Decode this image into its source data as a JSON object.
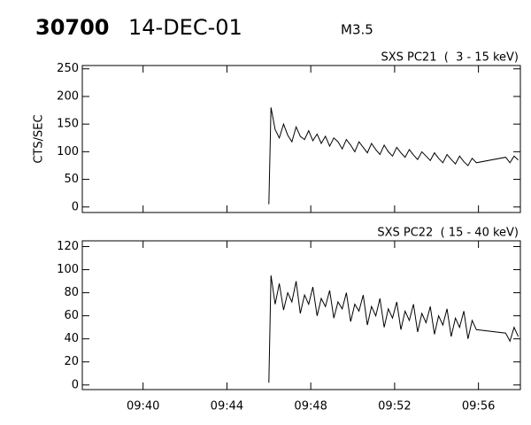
{
  "header": {
    "id": "30700",
    "date": "14-DEC-01",
    "class": "M3.5"
  },
  "chart_data": [
    {
      "type": "line",
      "title": "SXS PC21  (  3 - 15 keV)",
      "ylabel": "CTS/SEC",
      "xlim": [
        577.1,
        598
      ],
      "xticks": [
        580,
        584,
        588,
        592,
        596
      ],
      "ylim": [
        -10,
        256
      ],
      "yticks": [
        0,
        50,
        100,
        150,
        200,
        250
      ],
      "x": [
        586.0,
        586.1,
        586.3,
        586.5,
        586.7,
        586.9,
        587.1,
        587.3,
        587.5,
        587.7,
        587.9,
        588.1,
        588.3,
        588.5,
        588.7,
        588.9,
        589.1,
        589.3,
        589.5,
        589.7,
        589.9,
        590.1,
        590.3,
        590.5,
        590.7,
        590.9,
        591.1,
        591.3,
        591.5,
        591.7,
        591.9,
        592.1,
        592.3,
        592.5,
        592.7,
        592.9,
        593.1,
        593.3,
        593.5,
        593.7,
        593.9,
        594.1,
        594.3,
        594.5,
        594.7,
        594.9,
        595.1,
        595.3,
        595.5,
        595.7,
        595.9,
        597.3,
        597.5,
        597.7,
        597.9
      ],
      "series": [
        {
          "color": "#000000",
          "values": [
            5,
            180,
            140,
            125,
            150,
            130,
            118,
            145,
            128,
            122,
            138,
            120,
            132,
            115,
            128,
            110,
            125,
            118,
            105,
            122,
            112,
            100,
            118,
            108,
            98,
            115,
            104,
            95,
            112,
            100,
            92,
            108,
            98,
            90,
            104,
            94,
            86,
            100,
            92,
            84,
            98,
            88,
            80,
            95,
            86,
            78,
            92,
            82,
            75,
            88,
            80,
            90,
            80,
            92,
            85
          ]
        }
      ]
    },
    {
      "type": "line",
      "title": "SXS PC22  ( 15 - 40 keV)",
      "xlim": [
        577.1,
        598
      ],
      "xticks": [
        {
          "value": 580,
          "label": "09:40"
        },
        {
          "value": 584,
          "label": "09:44"
        },
        {
          "value": 588,
          "label": "09:48"
        },
        {
          "value": 592,
          "label": "09:52"
        },
        {
          "value": 596,
          "label": "09:56"
        }
      ],
      "ylim": [
        -4,
        125
      ],
      "yticks": [
        0,
        20,
        40,
        60,
        80,
        100,
        120
      ],
      "x": [
        586.0,
        586.1,
        586.3,
        586.5,
        586.7,
        586.9,
        587.1,
        587.3,
        587.5,
        587.7,
        587.9,
        588.1,
        588.3,
        588.5,
        588.7,
        588.9,
        589.1,
        589.3,
        589.5,
        589.7,
        589.9,
        590.1,
        590.3,
        590.5,
        590.7,
        590.9,
        591.1,
        591.3,
        591.5,
        591.7,
        591.9,
        592.1,
        592.3,
        592.5,
        592.7,
        592.9,
        593.1,
        593.3,
        593.5,
        593.7,
        593.9,
        594.1,
        594.3,
        594.5,
        594.7,
        594.9,
        595.1,
        595.3,
        595.5,
        595.7,
        595.9,
        597.3,
        597.5,
        597.7,
        597.9
      ],
      "series": [
        {
          "color": "#000000",
          "values": [
            2,
            95,
            70,
            88,
            65,
            80,
            72,
            90,
            62,
            78,
            70,
            85,
            60,
            75,
            68,
            82,
            58,
            72,
            66,
            80,
            55,
            70,
            64,
            78,
            52,
            68,
            60,
            75,
            50,
            66,
            58,
            72,
            48,
            64,
            56,
            70,
            46,
            62,
            54,
            68,
            44,
            60,
            52,
            66,
            42,
            58,
            50,
            64,
            40,
            56,
            48,
            45,
            38,
            50,
            42
          ]
        }
      ]
    }
  ]
}
